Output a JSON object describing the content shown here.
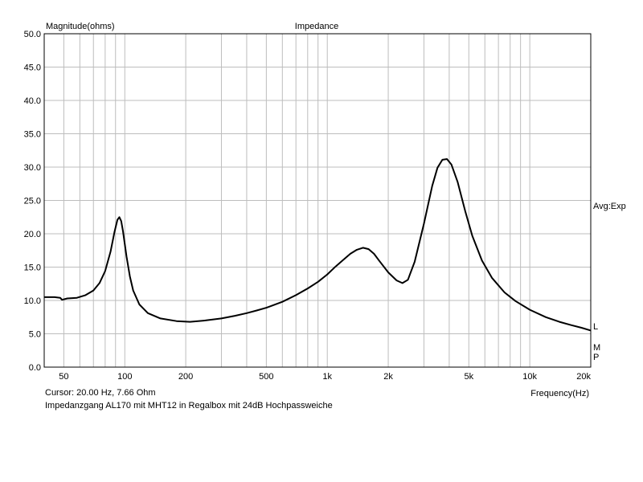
{
  "chart_data": {
    "type": "line",
    "title": "Impedance",
    "ylabel": "Magnitude(ohms)",
    "xlabel": "Frequency(Hz)",
    "x_scale": "log",
    "xlim": [
      40,
      20000
    ],
    "ylim": [
      0,
      50
    ],
    "grid": true,
    "y_ticks": [
      "0.0",
      "5.0",
      "10.0",
      "15.0",
      "20.0",
      "25.0",
      "30.0",
      "35.0",
      "40.0",
      "45.0",
      "50.0"
    ],
    "x_ticks": [
      {
        "value": 50,
        "label": "50"
      },
      {
        "value": 100,
        "label": "100"
      },
      {
        "value": 200,
        "label": "200"
      },
      {
        "value": 500,
        "label": "500"
      },
      {
        "value": 1000,
        "label": "1k"
      },
      {
        "value": 2000,
        "label": "2k"
      },
      {
        "value": 5000,
        "label": "5k"
      },
      {
        "value": 10000,
        "label": "10k"
      },
      {
        "value": 20000,
        "label": "20k"
      }
    ],
    "right_labels": {
      "avg": "Avg:Exp",
      "l": "L",
      "m": "M",
      "p": "P"
    },
    "series": [
      {
        "x": [
          40,
          45,
          48,
          49,
          52,
          58,
          64,
          70,
          75,
          80,
          85,
          89,
          92,
          94,
          96,
          98,
          102,
          106,
          110,
          118,
          130,
          150,
          180,
          210,
          250,
          300,
          350,
          400,
          450,
          500,
          600,
          700,
          800,
          900,
          1000,
          1100,
          1200,
          1300,
          1400,
          1500,
          1600,
          1700,
          1800,
          2000,
          2200,
          2350,
          2500,
          2700,
          3000,
          3300,
          3500,
          3700,
          3900,
          4100,
          4400,
          4800,
          5200,
          5800,
          6500,
          7500,
          8500,
          10000,
          12000,
          14000,
          16000,
          18000,
          20000
        ],
        "y": [
          10.5,
          10.5,
          10.4,
          10.1,
          10.3,
          10.4,
          10.8,
          11.5,
          12.6,
          14.4,
          17.3,
          20.3,
          22.1,
          22.5,
          21.9,
          20.4,
          16.6,
          13.6,
          11.5,
          9.4,
          8.1,
          7.3,
          6.9,
          6.8,
          7.0,
          7.3,
          7.7,
          8.1,
          8.5,
          8.9,
          9.8,
          10.8,
          11.8,
          12.8,
          13.9,
          15.1,
          16.1,
          17.0,
          17.6,
          17.9,
          17.7,
          17.0,
          16.0,
          14.2,
          13.0,
          12.6,
          13.1,
          15.8,
          21.5,
          27.2,
          29.9,
          31.1,
          31.2,
          30.4,
          27.8,
          23.4,
          19.7,
          16.0,
          13.4,
          11.2,
          9.9,
          8.6,
          7.5,
          6.8,
          6.3,
          5.9,
          5.5
        ]
      }
    ]
  },
  "status": {
    "cursor": "Cursor: 20.00 Hz, 7.66 Ohm",
    "caption": "Impedanzgang AL170 mit MHT12 in Regalbox mit 24dB Hochpassweiche"
  },
  "colors": {
    "grid": "#bdbdbd",
    "curve": "#000000",
    "frame": "#000000"
  }
}
